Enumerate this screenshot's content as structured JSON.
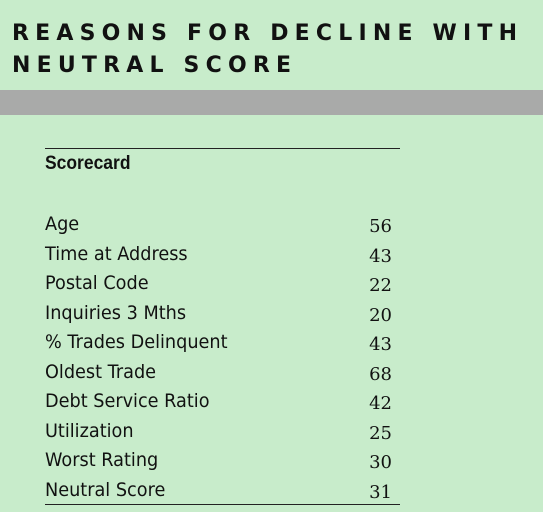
{
  "title": {
    "line1": "REASONS FOR DECLINE WITH",
    "line2": "NEUTRAL SCORE"
  },
  "table": {
    "heading": "Scorecard",
    "rows": [
      {
        "label": "Age",
        "value": "56"
      },
      {
        "label": "Time at Address",
        "value": "43"
      },
      {
        "label": "Postal Code",
        "value": "22"
      },
      {
        "label": "Inquiries 3 Mths",
        "value": "20"
      },
      {
        "label": "% Trades Delinquent",
        "value": "43"
      },
      {
        "label": "Oldest Trade",
        "value": "68"
      },
      {
        "label": "Debt Service Ratio",
        "value": "42"
      },
      {
        "label": "Utilization",
        "value": "25"
      },
      {
        "label": "Worst Rating",
        "value": "30"
      },
      {
        "label": "Neutral Score",
        "value": "31"
      }
    ]
  },
  "colors": {
    "background": "#c8eccb",
    "bar": "#a9aaa9",
    "text": "#111111"
  }
}
